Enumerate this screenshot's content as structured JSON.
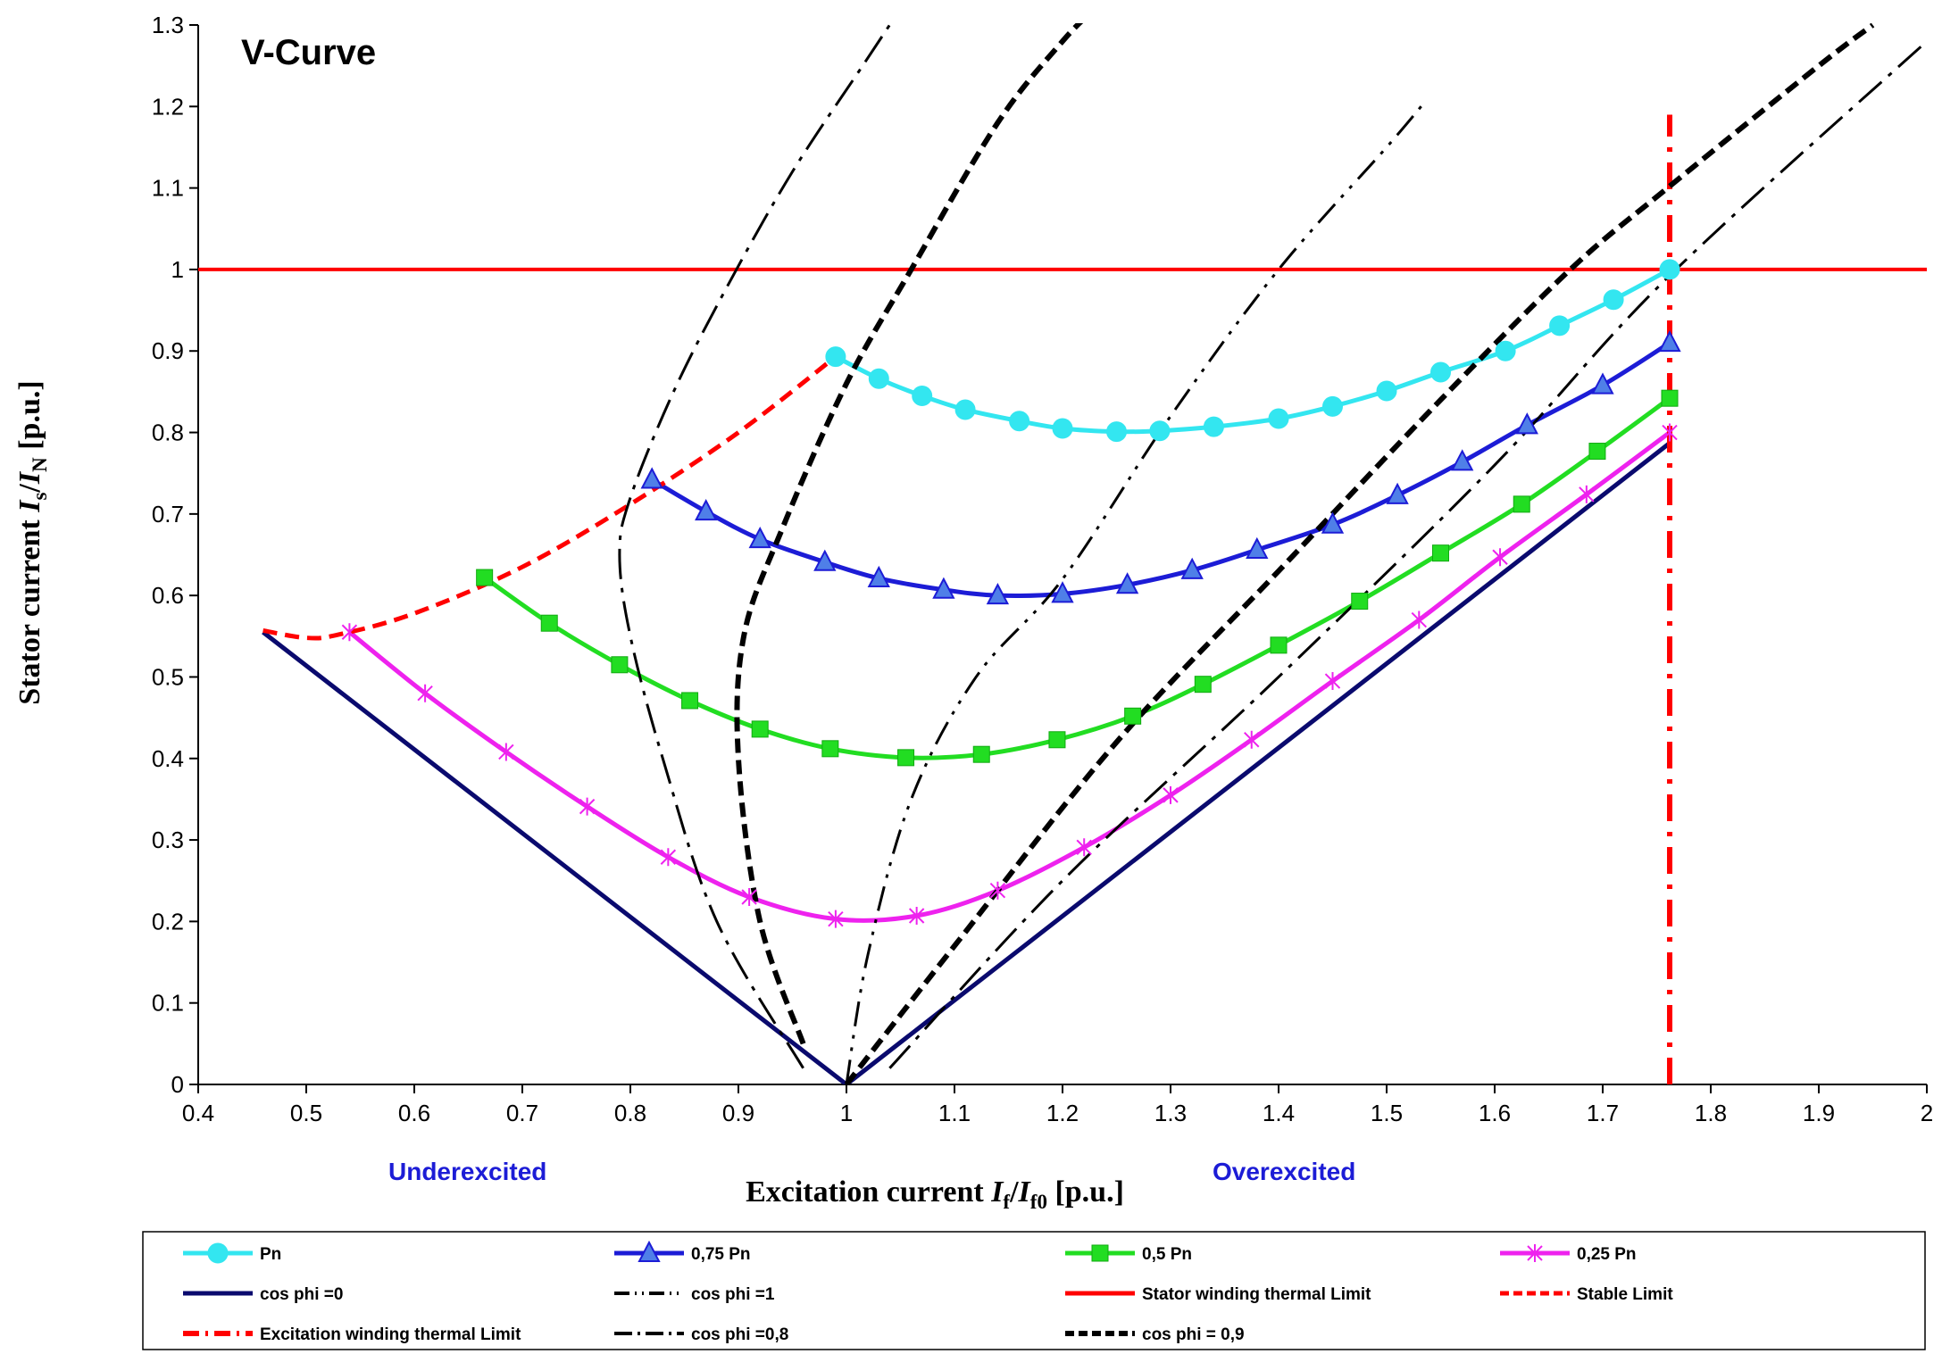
{
  "chart_data": {
    "type": "line",
    "title": "V-Curve",
    "xlabel_parts": [
      "Excitation current ",
      "I",
      "f",
      "/",
      "I",
      "f0",
      " [p.u.]"
    ],
    "ylabel_parts": [
      "Stator current  ",
      "I",
      "s",
      "/",
      "I",
      "N",
      " [p.u.]"
    ],
    "xlim": [
      0.4,
      2
    ],
    "ylim": [
      0,
      1.3
    ],
    "x_ticks": [
      "0.4",
      "0.5",
      "0.6",
      "0.7",
      "0.8",
      "0.9",
      "1",
      "1.1",
      "1.2",
      "1.3",
      "1.4",
      "1.5",
      "1.6",
      "1.7",
      "1.8",
      "1.9",
      "2"
    ],
    "y_ticks": [
      "0",
      "0.1",
      "0.2",
      "0.3",
      "0.4",
      "0.5",
      "0.6",
      "0.7",
      "0.8",
      "0.9",
      "1",
      "1.1",
      "1.2",
      "1.3"
    ],
    "grid": false,
    "legend_position": "bottom",
    "annotations": [
      "Underexcited",
      "Overexcited"
    ],
    "series": [
      {
        "name": "Pn",
        "color": "#33e6f0",
        "marker": "circle",
        "dash": "solid",
        "points": [
          [
            0.99,
            0.893
          ],
          [
            1.03,
            0.866
          ],
          [
            1.07,
            0.845
          ],
          [
            1.11,
            0.828
          ],
          [
            1.16,
            0.814
          ],
          [
            1.2,
            0.805
          ],
          [
            1.25,
            0.801
          ],
          [
            1.29,
            0.802
          ],
          [
            1.34,
            0.807
          ],
          [
            1.4,
            0.817
          ],
          [
            1.45,
            0.832
          ],
          [
            1.5,
            0.851
          ],
          [
            1.55,
            0.874
          ],
          [
            1.61,
            0.9
          ],
          [
            1.66,
            0.931
          ],
          [
            1.71,
            0.963
          ],
          [
            1.762,
            1.0
          ]
        ]
      },
      {
        "name": "0,75 Pn",
        "color": "#1c1cd6",
        "marker": "triangle",
        "dash": "solid",
        "points": [
          [
            0.82,
            0.742
          ],
          [
            0.87,
            0.703
          ],
          [
            0.92,
            0.669
          ],
          [
            0.98,
            0.641
          ],
          [
            1.03,
            0.621
          ],
          [
            1.09,
            0.607
          ],
          [
            1.14,
            0.6
          ],
          [
            1.2,
            0.602
          ],
          [
            1.26,
            0.613
          ],
          [
            1.32,
            0.631
          ],
          [
            1.38,
            0.656
          ],
          [
            1.45,
            0.687
          ],
          [
            1.51,
            0.723
          ],
          [
            1.57,
            0.764
          ],
          [
            1.63,
            0.809
          ],
          [
            1.7,
            0.858
          ],
          [
            1.762,
            0.91
          ]
        ]
      },
      {
        "name": "0,5 Pn",
        "color": "#22dd22",
        "marker": "square",
        "dash": "solid",
        "points": [
          [
            0.665,
            0.622
          ],
          [
            0.725,
            0.566
          ],
          [
            0.79,
            0.515
          ],
          [
            0.855,
            0.471
          ],
          [
            0.92,
            0.436
          ],
          [
            0.985,
            0.412
          ],
          [
            1.055,
            0.401
          ],
          [
            1.125,
            0.405
          ],
          [
            1.195,
            0.423
          ],
          [
            1.265,
            0.452
          ],
          [
            1.33,
            0.491
          ],
          [
            1.4,
            0.539
          ],
          [
            1.475,
            0.593
          ],
          [
            1.55,
            0.652
          ],
          [
            1.625,
            0.712
          ],
          [
            1.695,
            0.777
          ],
          [
            1.762,
            0.842
          ]
        ]
      },
      {
        "name": "0,25 Pn",
        "color": "#ee22ee",
        "marker": "star",
        "dash": "solid",
        "points": [
          [
            0.54,
            0.555
          ],
          [
            0.61,
            0.48
          ],
          [
            0.685,
            0.408
          ],
          [
            0.76,
            0.341
          ],
          [
            0.835,
            0.279
          ],
          [
            0.91,
            0.23
          ],
          [
            0.99,
            0.203
          ],
          [
            1.065,
            0.207
          ],
          [
            1.14,
            0.238
          ],
          [
            1.22,
            0.291
          ],
          [
            1.3,
            0.355
          ],
          [
            1.375,
            0.423
          ],
          [
            1.45,
            0.495
          ],
          [
            1.53,
            0.57
          ],
          [
            1.605,
            0.647
          ],
          [
            1.685,
            0.724
          ],
          [
            1.762,
            0.8
          ]
        ]
      },
      {
        "name": "cos phi =0",
        "color": "#0a0a6e",
        "marker": "none",
        "dash": "solid",
        "points": [
          [
            0.46,
            0.555
          ],
          [
            1.0,
            0.0
          ],
          [
            1.762,
            0.787
          ]
        ]
      },
      {
        "name": "cos phi =1",
        "color": "#000000",
        "marker": "none",
        "dash": "dash-dot-dot",
        "points": [
          [
            1.0,
            0.0
          ],
          [
            1.02,
            0.16
          ],
          [
            1.06,
            0.35
          ],
          [
            1.12,
            0.5
          ],
          [
            1.2,
            0.62
          ],
          [
            1.3,
            0.82
          ],
          [
            1.4,
            1.0
          ],
          [
            1.5,
            1.15
          ],
          [
            1.535,
            1.205
          ]
        ]
      },
      {
        "name": "Stator winding thermal Limit",
        "color": "#ff0000",
        "marker": "none",
        "dash": "solid",
        "points": [
          [
            0.4,
            1.0
          ],
          [
            2.0,
            1.0
          ]
        ]
      },
      {
        "name": "Stable Limit",
        "color": "#ff0000",
        "marker": "none",
        "dash": "dash",
        "points": [
          [
            0.46,
            0.557
          ],
          [
            0.5,
            0.548
          ],
          [
            0.53,
            0.552
          ],
          [
            0.6,
            0.578
          ],
          [
            0.7,
            0.635
          ],
          [
            0.8,
            0.712
          ],
          [
            0.9,
            0.8
          ],
          [
            0.99,
            0.893
          ]
        ]
      },
      {
        "name": "Excitation winding thermal Limit",
        "color": "#ff0000",
        "marker": "none",
        "dash": "dash-dot",
        "points": [
          [
            1.762,
            0.0
          ],
          [
            1.762,
            1.19
          ]
        ]
      },
      {
        "name": "cos phi =0,8",
        "color": "#000000",
        "marker": "none",
        "dash": "long-dash-dot",
        "points": [
          [
            0.96,
            0.02
          ],
          [
            0.88,
            0.2
          ],
          [
            0.83,
            0.4
          ],
          [
            0.8,
            0.55
          ],
          [
            0.79,
            0.65
          ],
          [
            0.8,
            0.72
          ],
          [
            0.84,
            0.85
          ],
          [
            0.89,
            0.98
          ],
          [
            0.95,
            1.12
          ],
          [
            1.015,
            1.25
          ],
          [
            1.04,
            1.3
          ]
        ]
      },
      {
        "name": "cos phi =0,8",
        "color": "#000000",
        "marker": "none",
        "dash": "long-dash-dot",
        "points": [
          [
            1.04,
            0.02
          ],
          [
            1.2,
            0.25
          ],
          [
            1.4,
            0.5
          ],
          [
            1.6,
            0.76
          ],
          [
            1.76,
            0.99
          ],
          [
            2.0,
            1.28
          ]
        ]
      },
      {
        "name": "cos phi = 0,9",
        "color": "#000000",
        "marker": "none",
        "dash": "heavy-dash",
        "points": [
          [
            0.96,
            0.05
          ],
          [
            0.92,
            0.2
          ],
          [
            0.9,
            0.4
          ],
          [
            0.905,
            0.55
          ],
          [
            0.94,
            0.68
          ],
          [
            1.0,
            0.86
          ],
          [
            1.06,
            1.0
          ],
          [
            1.14,
            1.18
          ],
          [
            1.2,
            1.28
          ],
          [
            1.23,
            1.32
          ]
        ]
      },
      {
        "name": "cos phi = 0,9",
        "color": "#000000",
        "marker": "none",
        "dash": "heavy-dash",
        "points": [
          [
            1.0,
            0.0
          ],
          [
            1.1,
            0.17
          ],
          [
            1.25,
            0.42
          ],
          [
            1.4,
            0.63
          ],
          [
            1.55,
            0.84
          ],
          [
            1.67,
            1.0
          ],
          [
            1.76,
            1.1
          ],
          [
            1.9,
            1.25
          ],
          [
            1.95,
            1.3
          ]
        ]
      }
    ]
  },
  "legend": {
    "items": [
      {
        "label": "Pn",
        "color": "#33e6f0",
        "marker": "circle",
        "dash": "solid"
      },
      {
        "label": "0,75 Pn",
        "color": "#1c1cd6",
        "marker": "triangle",
        "dash": "solid"
      },
      {
        "label": "0,5 Pn",
        "color": "#22dd22",
        "marker": "square",
        "dash": "solid"
      },
      {
        "label": "0,25 Pn",
        "color": "#ee22ee",
        "marker": "star",
        "dash": "solid"
      },
      {
        "label": "cos phi =0",
        "color": "#0a0a6e",
        "marker": "none",
        "dash": "solid"
      },
      {
        "label": "cos phi =1",
        "color": "#000000",
        "marker": "none",
        "dash": "dash-dot-dot"
      },
      {
        "label": "Stator winding thermal Limit",
        "color": "#ff0000",
        "marker": "none",
        "dash": "solid"
      },
      {
        "label": "Stable Limit",
        "color": "#ff0000",
        "marker": "none",
        "dash": "dash"
      },
      {
        "label": "Excitation winding thermal Limit",
        "color": "#ff0000",
        "marker": "none",
        "dash": "dash-dot"
      },
      {
        "label": "cos phi =0,8",
        "color": "#000000",
        "marker": "none",
        "dash": "long-dash-dot"
      },
      {
        "label": "cos phi = 0,9",
        "color": "#000000",
        "marker": "none",
        "dash": "heavy-dash"
      }
    ]
  }
}
